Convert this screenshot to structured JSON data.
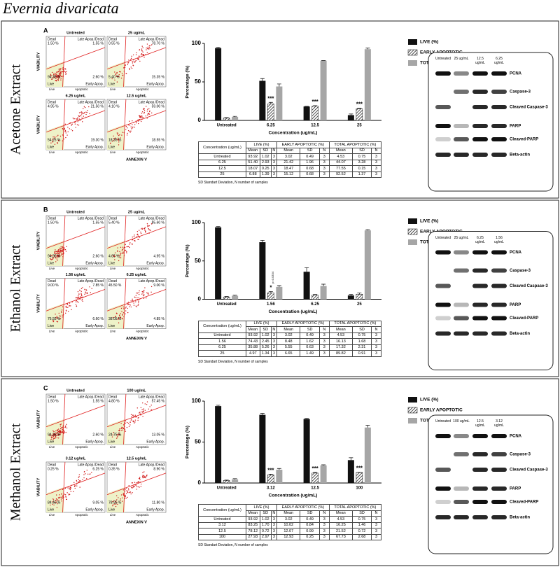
{
  "title": "Evernia divaricata",
  "panels": [
    {
      "letter": "A",
      "label": "Acetone Extract",
      "flow": {
        "x_label": "ANNEXIN V",
        "y_label": "VIABILITY",
        "quadrants": {
          "dead": "Dead",
          "late": "Late Apop./Dead",
          "early": "Early Apop.",
          "live": "Live"
        },
        "axis_ticks": [
          "Live",
          "Apoptotic"
        ],
        "plots": [
          {
            "title": "Untreated",
            "dead": "1.50 %",
            "late": "1.55 %",
            "live": "94.35 %",
            "early": "2.60 %"
          },
          {
            "title": "25 ug/mL",
            "dead": "0.55 %",
            "late": "78.70 %",
            "live": "5.40 %",
            "early": "15.35 %"
          },
          {
            "title": "6.25 ug/mL",
            "dead": "4.95 %",
            "late": "21.50 %",
            "live": "54.25 %",
            "early": "19.30 %"
          },
          {
            "title": "12.5 ug/mL",
            "dead": "4.10 %",
            "late": "59.00 %",
            "live": "18.35 %",
            "early": "18.55 %"
          }
        ]
      },
      "table": {
        "header": [
          "Concentration (ug/mL)",
          "LIVE (%)",
          "EARLY APOPTOTIC (%)",
          "TOTAL APOPTOTIC (%)"
        ],
        "subheader": [
          "Mean",
          "SD",
          "N"
        ],
        "rows": [
          [
            "Untreated",
            "93.92",
            "1.02",
            "3",
            "3.02",
            "0.49",
            "3",
            "4.53",
            "0.75",
            "3"
          ],
          [
            "6.25",
            "51.40",
            "2.93",
            "3",
            "21.42",
            "1.96",
            "3",
            "44.07",
            "3.28",
            "3"
          ],
          [
            "12.5",
            "18.07",
            "0.25",
            "3",
            "18.47",
            "0.68",
            "3",
            "77.55",
            "0.15",
            "3"
          ],
          [
            "25",
            "6.88",
            "1.39",
            "3",
            "15.12",
            "0.68",
            "3",
            "92.52",
            "1.37",
            "3"
          ]
        ],
        "note": "SD Standart Deviation, N number of samples"
      },
      "blot": {
        "lanes": [
          "Untreated",
          "25 ug/mL",
          "12.5 ug/mL",
          "6.25 ug/mL"
        ],
        "bands": [
          "PCNA",
          "Caspase-3",
          "Cleaved Caspase-3",
          "PARP",
          "Cleaved-PARP",
          "Beta-actin"
        ]
      }
    },
    {
      "letter": "B",
      "label": "Ethanol Extract",
      "flow": {
        "x_label": "ANNEXIN V",
        "y_label": "VIABILITY",
        "quadrants": {
          "dead": "Dead",
          "late": "Late Apop./Dead",
          "early": "Early Apop.",
          "live": "Live"
        },
        "axis_ticks": [
          "Live",
          "Apoptotic"
        ],
        "plots": [
          {
            "title": "Untreated",
            "dead": "1.50 %",
            "late": "1.55 %",
            "live": "94.35 %",
            "early": "2.60 %"
          },
          {
            "title": "25 ug/mL",
            "dead": "5.40 %",
            "late": "85.60 %",
            "live": "4.05 %",
            "early": "4.95 %"
          },
          {
            "title": "1.56 ug/mL",
            "dead": "9.00 %",
            "late": "7.85 %",
            "live": "76.55 %",
            "early": "6.60 %"
          },
          {
            "title": "6.25 ug/mL",
            "dead": "45.50 %",
            "late": "9.00 %",
            "live": "38.05 %",
            "early": "4.85 %"
          }
        ]
      },
      "table": {
        "header": [
          "Concentration (ug/mL)",
          "LIVE (%)",
          "EARLY APOPTOTIC (%)",
          "TOTAL APOPTOTIC (%)"
        ],
        "subheader": [
          "Mean",
          "SD",
          "N"
        ],
        "rows": [
          [
            "Untreated",
            "93.92",
            "1.02",
            "3",
            "3.02",
            "0.49",
            "3",
            "4.53",
            "0.75",
            "3"
          ],
          [
            "1.56",
            "74.43",
            "2.45",
            "3",
            "8.48",
            "1.62",
            "3",
            "16.13",
            "1.68",
            "3"
          ],
          [
            "6.25",
            "35.88",
            "5.26",
            "3",
            "5.55",
            "0.63",
            "3",
            "17.32",
            "2.31",
            "3"
          ],
          [
            "25",
            "4.97",
            "1.34",
            "3",
            "6.65",
            "1.49",
            "3",
            "89.82",
            "0.91",
            "3"
          ]
        ],
        "note": "SD Standart Deviation, N number of samples"
      },
      "blot": {
        "lanes": [
          "Untreated",
          "25 ug/mL",
          "6.25 ug/mL",
          "1.56 ug/mL"
        ],
        "bands": [
          "PCNA",
          "Caspase-3",
          "Cleaved Caspase-3",
          "PARP",
          "Cleaved-PARP",
          "Beta-actin"
        ]
      }
    },
    {
      "letter": "C",
      "label": "Methanol Extract",
      "flow": {
        "x_label": "ANNEXIN V",
        "y_label": "VIABILITY",
        "quadrants": {
          "dead": "Dead",
          "late": "Late Apop./Dead",
          "early": "Early Apop.",
          "live": "Live"
        },
        "axis_ticks": [
          "Live",
          "Apoptotic"
        ],
        "plots": [
          {
            "title": "Untreated",
            "dead": "1.50 %",
            "late": "1.55 %",
            "live": "94.35 %",
            "early": "2.60 %"
          },
          {
            "title": "100 ug/mL",
            "dead": "4.80 %",
            "late": "57.45 %",
            "live": "24.75 %",
            "early": "13.05 %"
          },
          {
            "title": "3.12 ug/mL",
            "dead": "0.25 %",
            "late": "6.25 %",
            "live": "84.45 %",
            "early": "9.05 %"
          },
          {
            "title": "12.5 ug/mL",
            "dead": "0.35 %",
            "late": "8.90 %",
            "live": "78.95 %",
            "early": "11.80 %"
          }
        ]
      },
      "table": {
        "header": [
          "Concentration (ug/mL)",
          "LIVE (%)",
          "EARLY APOPTOTIC (%)",
          "TOTAL APOPTOTIC (%)"
        ],
        "subheader": [
          "Mean",
          "SD",
          "N"
        ],
        "rows": [
          [
            "Untreated",
            "93.92",
            "1.02",
            "3",
            "3.02",
            "0.49",
            "3",
            "4.53",
            "0.75",
            "3"
          ],
          [
            "3.12",
            "83.25",
            "1.70",
            "3",
            "10.02",
            "0.84",
            "3",
            "16.25",
            "1.46",
            "3"
          ],
          [
            "12.5",
            "78.12",
            "0.72",
            "3",
            "12.07",
            "0.99",
            "3",
            "21.52",
            "0.72",
            "3"
          ],
          [
            "100",
            "27.93",
            "2.97",
            "3",
            "12.93",
            "0.25",
            "3",
            "67.73",
            "2.68",
            "3"
          ]
        ],
        "note": "SD Standart Deviation, N number of samples"
      },
      "blot": {
        "lanes": [
          "Untreated",
          "100 ug/mL",
          "12.5 ug/mL",
          "3.12 ug/mL"
        ],
        "bands": [
          "PCNA",
          "Caspase-3",
          "Cleaved Caspase-3",
          "PARP",
          "Cleaved-PARP",
          "Beta-actin"
        ]
      }
    }
  ],
  "chart_data": [
    {
      "type": "bar",
      "ylabel": "Percentage (%)",
      "xlabel": "Concentration (ug/mL)",
      "categories": [
        "Untreated",
        "6.25",
        "12.5",
        "25"
      ],
      "ylim": [
        0,
        100
      ],
      "yticks": [
        0,
        50,
        100
      ],
      "legend": "right",
      "series": [
        {
          "name": "LIVE (%)",
          "color": "#111111",
          "values": [
            93.92,
            51.4,
            18.07,
            6.88
          ],
          "errors": [
            1.02,
            2.93,
            0.25,
            1.39
          ]
        },
        {
          "name": "EARLY APOPTOTIC",
          "color": "#ffffff",
          "pattern": "hatch",
          "values": [
            3.02,
            21.42,
            18.47,
            15.12
          ],
          "errors": [
            0.49,
            1.96,
            0.68,
            0.68
          ],
          "annotations": [
            null,
            "***",
            "***",
            "***"
          ]
        },
        {
          "name": "TOTAL APOPTOTIC",
          "color": "#a6a6a6",
          "values": [
            4.53,
            44.07,
            77.55,
            92.52
          ],
          "errors": [
            0.75,
            3.28,
            0.15,
            1.37
          ]
        }
      ]
    },
    {
      "type": "bar",
      "ylabel": "Percentage (%)",
      "xlabel": "Concentration (ug/mL)",
      "categories": [
        "Untreated",
        "1.56",
        "6.25",
        "25"
      ],
      "ylim": [
        0,
        100
      ],
      "yticks": [
        0,
        50,
        100
      ],
      "legend": "right",
      "series": [
        {
          "name": "LIVE (%)",
          "color": "#111111",
          "values": [
            93.92,
            74.43,
            35.88,
            4.97
          ],
          "errors": [
            1.02,
            2.45,
            5.26,
            1.34
          ]
        },
        {
          "name": "EARLY APOPTOTIC",
          "color": "#ffffff",
          "pattern": "hatch",
          "values": [
            3.02,
            8.48,
            5.55,
            6.65
          ],
          "errors": [
            0.49,
            1.62,
            0.63,
            1.49
          ],
          "annotations": [
            null,
            "*",
            null,
            null
          ],
          "notes": [
            null,
            "p=0.0334",
            null,
            null
          ]
        },
        {
          "name": "TOTAL APOPTOTIC",
          "color": "#a6a6a6",
          "values": [
            4.53,
            16.13,
            17.32,
            89.82
          ],
          "errors": [
            0.75,
            1.68,
            2.31,
            0.91
          ]
        }
      ]
    },
    {
      "type": "bar",
      "ylabel": "Percentage (%)",
      "xlabel": "Concentration (ug/mL)",
      "categories": [
        "Untreated",
        "3.12",
        "12.5",
        "100"
      ],
      "ylim": [
        0,
        100
      ],
      "yticks": [
        0,
        50,
        100
      ],
      "legend": "right",
      "series": [
        {
          "name": "LIVE (%)",
          "color": "#111111",
          "values": [
            93.92,
            83.25,
            78.12,
            27.93
          ],
          "errors": [
            1.02,
            1.7,
            0.72,
            2.97
          ]
        },
        {
          "name": "EARLY APOPTOTIC",
          "color": "#ffffff",
          "pattern": "hatch",
          "values": [
            3.02,
            10.02,
            12.07,
            12.93
          ],
          "errors": [
            0.49,
            0.84,
            0.99,
            0.25
          ],
          "annotations": [
            null,
            "***",
            "***",
            "***"
          ]
        },
        {
          "name": "TOTAL APOPTOTIC",
          "color": "#a6a6a6",
          "values": [
            4.53,
            16.25,
            21.52,
            67.73
          ],
          "errors": [
            0.75,
            1.46,
            0.72,
            2.68
          ]
        }
      ]
    }
  ]
}
